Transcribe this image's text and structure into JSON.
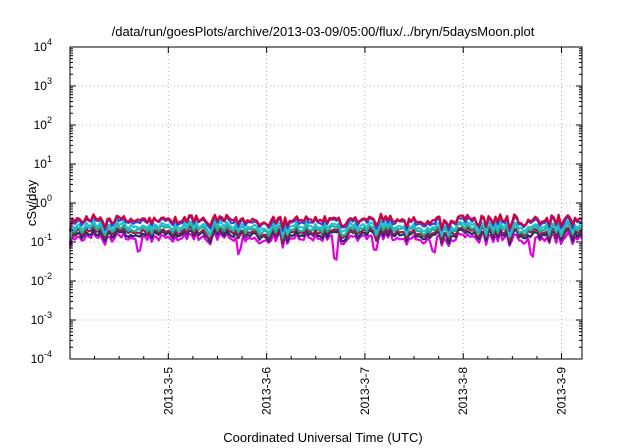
{
  "chart_data": {
    "type": "line",
    "title": "/data/run/goesPlots/archive/2013-03-09/05:00/flux/../bryn/5daysMoon.plot",
    "xlabel": "Coordinated Universal Time (UTC)",
    "ylabel": "cSv/day",
    "y_scale": "log",
    "ylim": [
      0.0001,
      10000
    ],
    "y_ticks": [
      {
        "base": "10",
        "exp": "-4",
        "value": 0.0001
      },
      {
        "base": "10",
        "exp": "-3",
        "value": 0.001
      },
      {
        "base": "10",
        "exp": "-2",
        "value": 0.01
      },
      {
        "base": "10",
        "exp": "-1",
        "value": 0.1
      },
      {
        "base": "10",
        "exp": "0",
        "value": 1
      },
      {
        "base": "10",
        "exp": "1",
        "value": 10
      },
      {
        "base": "10",
        "exp": "2",
        "value": 100
      },
      {
        "base": "10",
        "exp": "3",
        "value": 1000
      },
      {
        "base": "10",
        "exp": "4",
        "value": 10000
      }
    ],
    "xlim": [
      "2013-03-04",
      "2013-03-09T05:00"
    ],
    "x_ticks": [
      "2013-3-5",
      "2013-3-6",
      "2013-3-7",
      "2013-3-8",
      "2013-3-9"
    ],
    "grid": true,
    "series": [
      {
        "color": "#d4003c",
        "base": 0.38,
        "dips": []
      },
      {
        "color": "#3048d8",
        "base": 0.34,
        "dips": []
      },
      {
        "color": "#20c0d0",
        "base": 0.26,
        "dips": []
      },
      {
        "color": "#20b090",
        "base": 0.22,
        "dips": []
      },
      {
        "color": "#8a2050",
        "base": 0.185,
        "dips": []
      },
      {
        "color": "#203060",
        "base": 0.16,
        "dips": []
      },
      {
        "color": "#e000e0",
        "base": 0.13,
        "dips": [
          {
            "day": 0.7,
            "value": 0.04
          },
          {
            "day": 1.72,
            "value": 0.04
          },
          {
            "day": 2.7,
            "value": 0.018
          },
          {
            "day": 3.1,
            "value": 0.05
          },
          {
            "day": 3.7,
            "value": 0.04
          },
          {
            "day": 4.7,
            "value": 0.028
          }
        ]
      }
    ]
  }
}
